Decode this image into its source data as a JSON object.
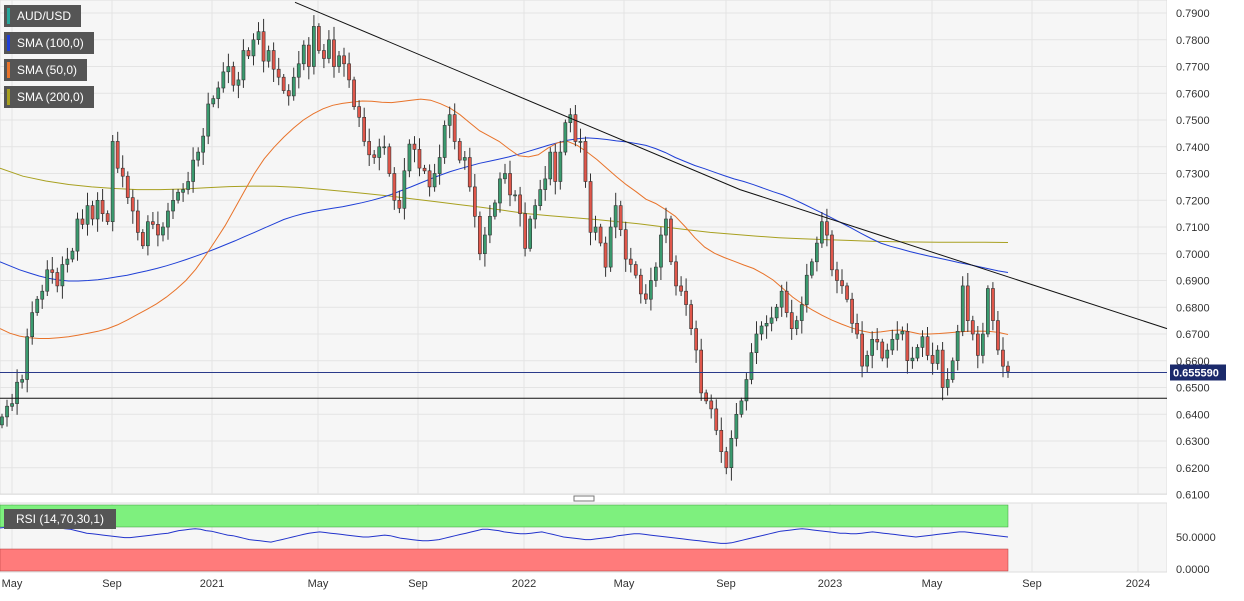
{
  "symbol": "AUD/USD",
  "legend": [
    {
      "label": "SMA (100,0)",
      "color": "#1f3fd6"
    },
    {
      "label": "SMA (50,0)",
      "color": "#e8732a"
    },
    {
      "label": "SMA (200,0)",
      "color": "#a8a020"
    }
  ],
  "symbol_color": "#26a69a",
  "rsi_label": "RSI (14,70,30,1)",
  "current_price_label": "0.655590",
  "chart_data": {
    "type": "candlestick",
    "title": "AUD/USD",
    "interval": "weekly",
    "x_ticks": [
      "May",
      "Sep",
      "2021",
      "May",
      "Sep",
      "2022",
      "May",
      "Sep",
      "2023",
      "May",
      "Sep",
      "2024"
    ],
    "y_ticks": [
      "0.7900",
      "0.7800",
      "0.7700",
      "0.7600",
      "0.7500",
      "0.7400",
      "0.7300",
      "0.7200",
      "0.7100",
      "0.7000",
      "0.6900",
      "0.6800",
      "0.6700",
      "0.6600",
      "0.6500",
      "0.6400",
      "0.6300",
      "0.6200",
      "0.6100"
    ],
    "ylim": [
      0.61,
      0.794
    ],
    "close": [
      0.639,
      0.643,
      0.644,
      0.652,
      0.653,
      0.669,
      0.678,
      0.683,
      0.686,
      0.694,
      0.693,
      0.688,
      0.696,
      0.698,
      0.701,
      0.713,
      0.711,
      0.718,
      0.713,
      0.72,
      0.715,
      0.712,
      0.742,
      0.732,
      0.729,
      0.721,
      0.716,
      0.708,
      0.703,
      0.712,
      0.711,
      0.707,
      0.71,
      0.716,
      0.72,
      0.723,
      0.724,
      0.727,
      0.735,
      0.738,
      0.744,
      0.756,
      0.758,
      0.762,
      0.768,
      0.77,
      0.763,
      0.765,
      0.776,
      0.774,
      0.78,
      0.783,
      0.772,
      0.776,
      0.769,
      0.766,
      0.761,
      0.759,
      0.766,
      0.771,
      0.778,
      0.77,
      0.785,
      0.776,
      0.773,
      0.78,
      0.77,
      0.774,
      0.771,
      0.765,
      0.755,
      0.751,
      0.742,
      0.737,
      0.736,
      0.74,
      0.74,
      0.73,
      0.72,
      0.717,
      0.731,
      0.741,
      0.739,
      0.732,
      0.731,
      0.725,
      0.73,
      0.736,
      0.748,
      0.752,
      0.742,
      0.735,
      0.736,
      0.725,
      0.714,
      0.7,
      0.707,
      0.714,
      0.719,
      0.728,
      0.73,
      0.722,
      0.722,
      0.715,
      0.702,
      0.713,
      0.718,
      0.724,
      0.728,
      0.738,
      0.727,
      0.738,
      0.749,
      0.752,
      0.742,
      0.742,
      0.727,
      0.708,
      0.71,
      0.704,
      0.695,
      0.71,
      0.718,
      0.709,
      0.698,
      0.696,
      0.692,
      0.685,
      0.683,
      0.69,
      0.695,
      0.707,
      0.713,
      0.697,
      0.688,
      0.686,
      0.681,
      0.672,
      0.664,
      0.648,
      0.645,
      0.642,
      0.634,
      0.626,
      0.62,
      0.631,
      0.64,
      0.645,
      0.653,
      0.663,
      0.67,
      0.673,
      0.674,
      0.676,
      0.68,
      0.686,
      0.678,
      0.672,
      0.675,
      0.681,
      0.692,
      0.697,
      0.704,
      0.712,
      0.707,
      0.694,
      0.69,
      0.688,
      0.683,
      0.674,
      0.67,
      0.658,
      0.662,
      0.668,
      0.667,
      0.661,
      0.664,
      0.668,
      0.67,
      0.671,
      0.66,
      0.661,
      0.665,
      0.669,
      0.662,
      0.659,
      0.664,
      0.65,
      0.653,
      0.66,
      0.671,
      0.688,
      0.675,
      0.67,
      0.662,
      0.67,
      0.687,
      0.675,
      0.664,
      0.658,
      0.656
    ],
    "sma_100": [
      0.697,
      0.6955,
      0.694,
      0.6928,
      0.6917,
      0.6908,
      0.6902,
      0.6898,
      0.6898,
      0.69,
      0.6903,
      0.6908,
      0.6914,
      0.692,
      0.6928,
      0.6936,
      0.6945,
      0.6955,
      0.6966,
      0.6978,
      0.6991,
      0.7004,
      0.7018,
      0.7033,
      0.7048,
      0.7064,
      0.708,
      0.7096,
      0.7112,
      0.7128,
      0.714,
      0.715,
      0.7158,
      0.7164,
      0.717,
      0.7176,
      0.7183,
      0.7191,
      0.72,
      0.721,
      0.7222,
      0.7236,
      0.725,
      0.7265,
      0.728,
      0.7294,
      0.7307,
      0.7318,
      0.7328,
      0.7338,
      0.7346,
      0.7354,
      0.7362,
      0.7372,
      0.7383,
      0.7394,
      0.7405,
      0.7415,
      0.7424,
      0.743,
      0.7433,
      0.7431,
      0.7427,
      0.7422,
      0.7418,
      0.7412,
      0.7405,
      0.7393,
      0.7378,
      0.736,
      0.7345,
      0.733,
      0.7318,
      0.7305,
      0.7292,
      0.728,
      0.727,
      0.7258,
      0.7245,
      0.7232,
      0.722,
      0.7205,
      0.7188,
      0.717,
      0.7152,
      0.7134,
      0.7115,
      0.7096,
      0.7076,
      0.7057,
      0.704,
      0.7028,
      0.7018,
      0.7008,
      0.6999,
      0.6991,
      0.6983,
      0.6975,
      0.6967,
      0.696,
      0.6952,
      0.6944,
      0.6936,
      0.693
    ],
    "sma_50": [
      0.672,
      0.6703,
      0.6692,
      0.6686,
      0.6683,
      0.6683,
      0.6686,
      0.669,
      0.6696,
      0.6703,
      0.671,
      0.672,
      0.6734,
      0.6752,
      0.6772,
      0.6792,
      0.6813,
      0.6838,
      0.6867,
      0.69,
      0.6942,
      0.6993,
      0.7048,
      0.7105,
      0.717,
      0.7236,
      0.73,
      0.7355,
      0.7398,
      0.7436,
      0.747,
      0.75,
      0.7523,
      0.7542,
      0.7555,
      0.7562,
      0.7567,
      0.7571,
      0.757,
      0.7566,
      0.7565,
      0.7569,
      0.7574,
      0.7578,
      0.7574,
      0.7561,
      0.7544,
      0.752,
      0.749,
      0.746,
      0.744,
      0.742,
      0.7392,
      0.7366,
      0.7362,
      0.737,
      0.7395,
      0.7415,
      0.742,
      0.7405,
      0.738,
      0.7352,
      0.732,
      0.7288,
      0.7258,
      0.7232,
      0.7204,
      0.7188,
      0.7165,
      0.714,
      0.7102,
      0.706,
      0.7025,
      0.7002,
      0.6986,
      0.6972,
      0.6958,
      0.6945,
      0.6925,
      0.6902,
      0.687,
      0.6838,
      0.6812,
      0.679,
      0.677,
      0.6752,
      0.6737,
      0.6723,
      0.6712,
      0.6705,
      0.6708,
      0.6713,
      0.6715,
      0.6708,
      0.67,
      0.67,
      0.6702,
      0.6705,
      0.6708,
      0.671,
      0.6711,
      0.671,
      0.6706,
      0.6698
    ],
    "sma_200": [
      0.732,
      0.729,
      0.7272,
      0.7259,
      0.725,
      0.7244,
      0.724,
      0.724,
      0.7242,
      0.7247,
      0.7251,
      0.7253,
      0.7252,
      0.7248,
      0.7241,
      0.7233,
      0.7225,
      0.7216,
      0.7205,
      0.7195,
      0.7184,
      0.7174,
      0.7162,
      0.715,
      0.7142,
      0.7135,
      0.7128,
      0.712,
      0.7111,
      0.71,
      0.709,
      0.708,
      0.7073,
      0.7066,
      0.706,
      0.7056,
      0.7053,
      0.705,
      0.7047,
      0.7045,
      0.7044,
      0.7043,
      0.7043,
      0.7043,
      0.7042
    ],
    "resistance_trendline": [
      0.794,
      0.724,
      0.672
    ],
    "support_level": 0.646,
    "current_price": 0.65559,
    "rsi": {
      "y_ticks": [
        "50.0000",
        "0.0000"
      ],
      "overbought": 70,
      "oversold": 30,
      "values": [
        64,
        65,
        66,
        68,
        67,
        69,
        70,
        69,
        68,
        67,
        66,
        64,
        63,
        62,
        60,
        58,
        56,
        55,
        54,
        53,
        52,
        51,
        50,
        49,
        49,
        50,
        51,
        52,
        53,
        54,
        55,
        56,
        58,
        60,
        61,
        62,
        63,
        62,
        60,
        59,
        57,
        55,
        53,
        52,
        50,
        48,
        46,
        45,
        44,
        43,
        42,
        44,
        46,
        48,
        50,
        52,
        54,
        56,
        57,
        58,
        57,
        56,
        55,
        54,
        53,
        52,
        51,
        50,
        50,
        51,
        52,
        53,
        52,
        50,
        48,
        47,
        46,
        45,
        44,
        44,
        45,
        46,
        48,
        50,
        52,
        54,
        56,
        58,
        60,
        62,
        62,
        61,
        60,
        58,
        57,
        56,
        55,
        55,
        56,
        57,
        58,
        56,
        54,
        52,
        50,
        49,
        48,
        47,
        46,
        46,
        47,
        48,
        49,
        50,
        52,
        53,
        54,
        55,
        55,
        54,
        53,
        52,
        51,
        50,
        49,
        48,
        47,
        46,
        45,
        44,
        43,
        42,
        41,
        40,
        40,
        41,
        43,
        45,
        47,
        49,
        51,
        53,
        55,
        57,
        59,
        60,
        61,
        62,
        63,
        62,
        61,
        60,
        59,
        58,
        57,
        56,
        56,
        55,
        55,
        56,
        57,
        58,
        57,
        56,
        55,
        54,
        53,
        52,
        51,
        50,
        51,
        52,
        53,
        54,
        55,
        56,
        57,
        58,
        58,
        57,
        56,
        55,
        54,
        53,
        52,
        51,
        50
      ]
    }
  }
}
